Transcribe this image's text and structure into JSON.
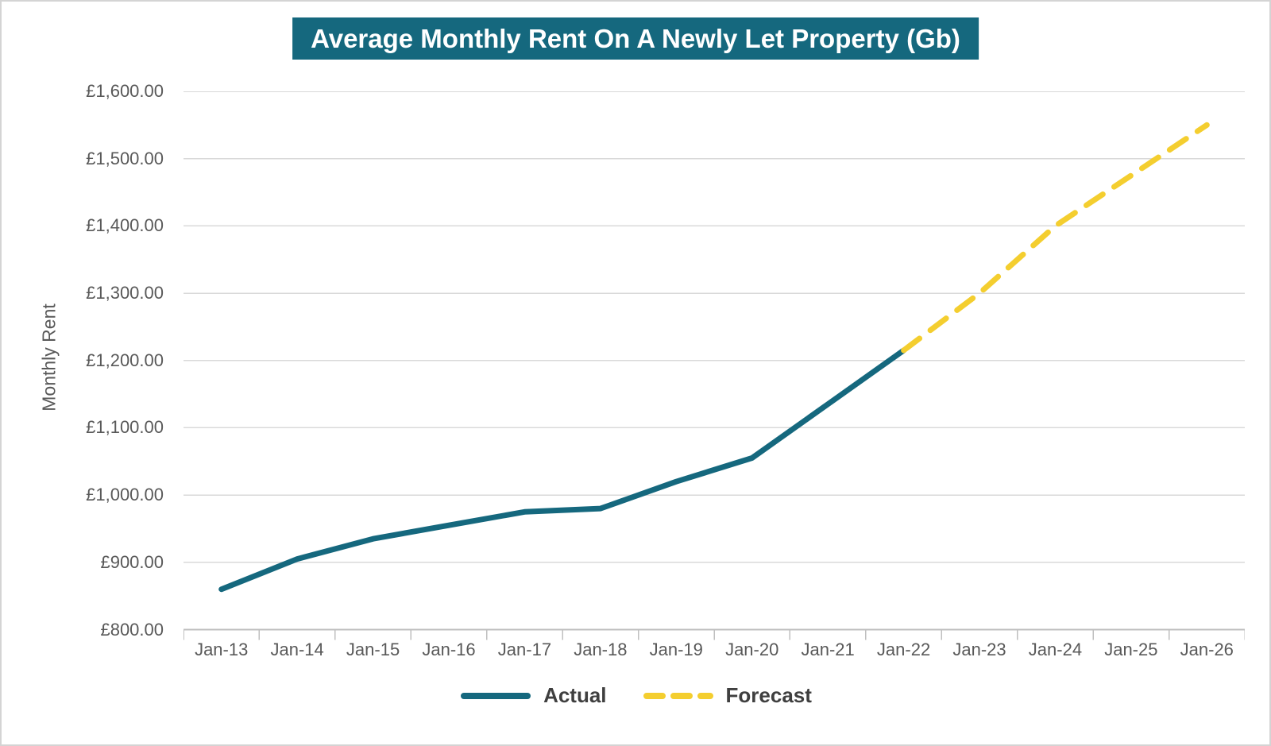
{
  "title": "Average Monthly Rent On A Newly Let Property (Gb)",
  "colors": {
    "title_background": "#15687E",
    "title_text": "#ffffff",
    "actual_line": "#15687E",
    "forecast_line": "#F4CE2F",
    "gridline": "#D9D9D9",
    "axis_line": "#BFBFBF",
    "axis_text": "#595959",
    "legend_text": "#3F3F3F"
  },
  "chart_data": {
    "type": "line",
    "title": "Average Monthly Rent On A Newly Let Property (Gb)",
    "xlabel": "",
    "ylabel": "Monthly Rent",
    "categories": [
      "Jan-13",
      "Jan-14",
      "Jan-15",
      "Jan-16",
      "Jan-17",
      "Jan-18",
      "Jan-19",
      "Jan-20",
      "Jan-21",
      "Jan-22",
      "Jan-23",
      "Jan-24",
      "Jan-25",
      "Jan-26"
    ],
    "series": [
      {
        "name": "Actual",
        "style": "solid",
        "color": "#15687E",
        "values": [
          860,
          905,
          935,
          955,
          975,
          980,
          1020,
          1055,
          1135,
          1215,
          null,
          null,
          null,
          null
        ]
      },
      {
        "name": "Forecast",
        "style": "dashed",
        "color": "#F4CE2F",
        "values": [
          null,
          null,
          null,
          null,
          null,
          null,
          null,
          null,
          null,
          1215,
          1300,
          1400,
          1475,
          1550
        ]
      }
    ],
    "ylim": [
      800,
      1600
    ],
    "y_tick_step": 100,
    "y_tick_labels": [
      "£800.00",
      "£900.00",
      "£1,000.00",
      "£1,100.00",
      "£1,200.00",
      "£1,300.00",
      "£1,400.00",
      "£1,500.00",
      "£1,600.00"
    ],
    "grid": true,
    "legend_position": "bottom"
  },
  "legend": {
    "items": [
      {
        "label": "Actual",
        "style": "solid",
        "color": "#15687E"
      },
      {
        "label": "Forecast",
        "style": "dashed",
        "color": "#F4CE2F"
      }
    ]
  }
}
